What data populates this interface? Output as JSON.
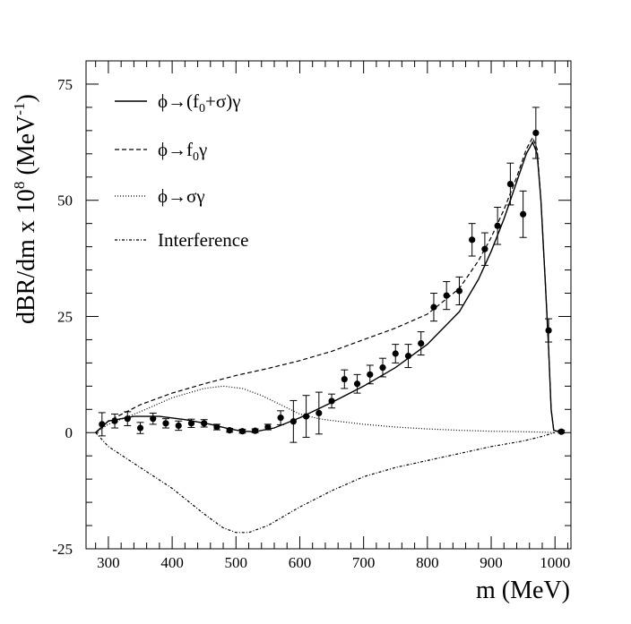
{
  "chart_data": {
    "type": "line",
    "xlabel": "m (MeV)",
    "ylabel": {
      "main": "dBR/dm x 10",
      "exp": "8",
      "unit_open": " (MeV",
      "unit_exp": "-1",
      "unit_close": ")"
    },
    "xlim": [
      265,
      1025
    ],
    "ylim": [
      -25,
      80
    ],
    "xticks": [
      300,
      400,
      500,
      600,
      700,
      800,
      900,
      1000
    ],
    "yticks": [
      -25,
      0,
      25,
      50,
      75
    ],
    "grid": false,
    "legend_position": "top-left",
    "legend": [
      {
        "key": "total",
        "parts": [
          {
            "t": "ϕ→(f"
          },
          {
            "t": "0",
            "sub": true
          },
          {
            "t": "+σ)γ"
          }
        ]
      },
      {
        "key": "f0",
        "parts": [
          {
            "t": "ϕ→f"
          },
          {
            "t": "0",
            "sub": true
          },
          {
            "t": "γ"
          }
        ]
      },
      {
        "key": "sigma",
        "parts": [
          {
            "t": "ϕ→σγ"
          }
        ]
      },
      {
        "key": "interference",
        "parts": [
          {
            "t": "Interference"
          }
        ]
      }
    ],
    "series": [
      {
        "key": "total",
        "style": "solid",
        "points": [
          [
            280,
            0
          ],
          [
            300,
            2.5
          ],
          [
            340,
            3.5
          ],
          [
            380,
            3.5
          ],
          [
            420,
            2.8
          ],
          [
            460,
            1.8
          ],
          [
            490,
            0.8
          ],
          [
            510,
            0.3
          ],
          [
            530,
            0.2
          ],
          [
            560,
            1
          ],
          [
            600,
            3.2
          ],
          [
            650,
            6.5
          ],
          [
            700,
            10
          ],
          [
            750,
            14
          ],
          [
            800,
            19
          ],
          [
            850,
            26
          ],
          [
            880,
            33
          ],
          [
            900,
            39
          ],
          [
            920,
            46
          ],
          [
            940,
            54
          ],
          [
            955,
            60
          ],
          [
            965,
            62.5
          ],
          [
            972,
            60
          ],
          [
            978,
            50
          ],
          [
            985,
            32
          ],
          [
            990,
            18
          ],
          [
            994,
            5
          ],
          [
            998,
            0.5
          ],
          [
            1010,
            0
          ]
        ]
      },
      {
        "key": "f0",
        "style": "dashed",
        "points": [
          [
            280,
            0
          ],
          [
            300,
            2.5
          ],
          [
            350,
            6
          ],
          [
            400,
            8.5
          ],
          [
            450,
            10.5
          ],
          [
            500,
            12.3
          ],
          [
            550,
            13.8
          ],
          [
            600,
            15.5
          ],
          [
            650,
            17.5
          ],
          [
            700,
            20
          ],
          [
            750,
            22.5
          ],
          [
            800,
            25.5
          ],
          [
            850,
            31
          ],
          [
            880,
            37
          ],
          [
            900,
            42
          ],
          [
            920,
            48
          ],
          [
            940,
            55
          ],
          [
            955,
            61
          ],
          [
            965,
            63.5
          ],
          [
            972,
            61
          ],
          [
            978,
            50
          ],
          [
            985,
            32
          ],
          [
            990,
            18
          ],
          [
            994,
            5
          ],
          [
            998,
            0.5
          ],
          [
            1010,
            0
          ]
        ]
      },
      {
        "key": "sigma",
        "style": "dotted",
        "points": [
          [
            280,
            0
          ],
          [
            300,
            1.8
          ],
          [
            350,
            4.5
          ],
          [
            400,
            7.5
          ],
          [
            450,
            9.5
          ],
          [
            480,
            10
          ],
          [
            510,
            9.5
          ],
          [
            540,
            8
          ],
          [
            570,
            6
          ],
          [
            600,
            4
          ],
          [
            630,
            3
          ],
          [
            650,
            2.6
          ],
          [
            700,
            1.8
          ],
          [
            750,
            1.2
          ],
          [
            800,
            0.8
          ],
          [
            850,
            0.5
          ],
          [
            900,
            0.3
          ],
          [
            950,
            0.2
          ],
          [
            980,
            0.1
          ],
          [
            1000,
            0
          ]
        ]
      },
      {
        "key": "interference",
        "style": "dashdot",
        "points": [
          [
            280,
            0
          ],
          [
            300,
            -3
          ],
          [
            350,
            -7.5
          ],
          [
            400,
            -12
          ],
          [
            450,
            -17.5
          ],
          [
            480,
            -20.5
          ],
          [
            500,
            -21.5
          ],
          [
            520,
            -21.5
          ],
          [
            550,
            -20
          ],
          [
            600,
            -16
          ],
          [
            650,
            -12.5
          ],
          [
            700,
            -9.5
          ],
          [
            750,
            -7.5
          ],
          [
            800,
            -6
          ],
          [
            850,
            -4.5
          ],
          [
            900,
            -3
          ],
          [
            950,
            -1.8
          ],
          [
            980,
            -0.8
          ],
          [
            1000,
            0
          ]
        ]
      }
    ],
    "data_points": [
      {
        "x": 290,
        "y": 1.8,
        "err": 2.5
      },
      {
        "x": 310,
        "y": 2.5,
        "err": 1.5
      },
      {
        "x": 330,
        "y": 3.0,
        "err": 1.5
      },
      {
        "x": 350,
        "y": 1.0,
        "err": 1.2
      },
      {
        "x": 370,
        "y": 3.0,
        "err": 1.2
      },
      {
        "x": 390,
        "y": 2.0,
        "err": 1.0
      },
      {
        "x": 410,
        "y": 1.5,
        "err": 1.0
      },
      {
        "x": 430,
        "y": 2.0,
        "err": 0.9
      },
      {
        "x": 450,
        "y": 2.0,
        "err": 0.8
      },
      {
        "x": 470,
        "y": 1.2,
        "err": 0.6
      },
      {
        "x": 490,
        "y": 0.5,
        "err": 0.4
      },
      {
        "x": 510,
        "y": 0.3,
        "err": 0.4
      },
      {
        "x": 530,
        "y": 0.4,
        "err": 0.4
      },
      {
        "x": 550,
        "y": 1.2,
        "err": 0.6
      },
      {
        "x": 570,
        "y": 3.2,
        "err": 1.5
      },
      {
        "x": 590,
        "y": 2.4,
        "err": 4.5
      },
      {
        "x": 610,
        "y": 3.5,
        "err": 4.5
      },
      {
        "x": 630,
        "y": 4.2,
        "err": 4.5
      },
      {
        "x": 650,
        "y": 6.8,
        "err": 1.5
      },
      {
        "x": 670,
        "y": 11.5,
        "err": 2.0
      },
      {
        "x": 690,
        "y": 10.5,
        "err": 2.0
      },
      {
        "x": 710,
        "y": 12.5,
        "err": 2.0
      },
      {
        "x": 730,
        "y": 14.0,
        "err": 2.0
      },
      {
        "x": 750,
        "y": 17.0,
        "err": 2.0
      },
      {
        "x": 770,
        "y": 16.5,
        "err": 2.5
      },
      {
        "x": 790,
        "y": 19.2,
        "err": 2.5
      },
      {
        "x": 810,
        "y": 27.0,
        "err": 3.0
      },
      {
        "x": 830,
        "y": 29.5,
        "err": 3.0
      },
      {
        "x": 850,
        "y": 30.5,
        "err": 3.0
      },
      {
        "x": 870,
        "y": 41.5,
        "err": 3.5
      },
      {
        "x": 890,
        "y": 39.5,
        "err": 3.5
      },
      {
        "x": 910,
        "y": 44.5,
        "err": 4.0
      },
      {
        "x": 930,
        "y": 53.5,
        "err": 4.5
      },
      {
        "x": 950,
        "y": 47.0,
        "err": 5.0
      },
      {
        "x": 970,
        "y": 64.5,
        "err": 5.5
      },
      {
        "x": 990,
        "y": 22.0,
        "err": 2.5
      },
      {
        "x": 1010,
        "y": 0.2,
        "err": 0.3
      }
    ]
  }
}
